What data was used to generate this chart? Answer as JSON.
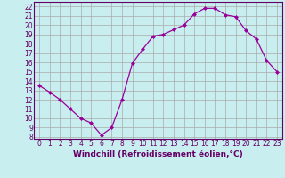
{
  "x": [
    0,
    1,
    2,
    3,
    4,
    5,
    6,
    7,
    8,
    9,
    10,
    11,
    12,
    13,
    14,
    15,
    16,
    17,
    18,
    19,
    20,
    21,
    22,
    23
  ],
  "y": [
    13.5,
    12.8,
    12.0,
    11.0,
    10.0,
    9.5,
    8.2,
    9.0,
    12.0,
    15.9,
    17.4,
    18.8,
    19.0,
    19.5,
    20.0,
    21.2,
    21.8,
    21.8,
    21.1,
    20.9,
    19.4,
    18.5,
    16.2,
    15.0
  ],
  "line_color": "#990099",
  "marker": "D",
  "marker_size": 2.0,
  "bg_color": "#c8eef0",
  "grid_color": "#aaaaaa",
  "xlabel": "Windchill (Refroidissement éolien,°C)",
  "xlim": [
    -0.5,
    23.5
  ],
  "ylim": [
    7.8,
    22.5
  ],
  "yticks": [
    8,
    9,
    10,
    11,
    12,
    13,
    14,
    15,
    16,
    17,
    18,
    19,
    20,
    21,
    22
  ],
  "xticks": [
    0,
    1,
    2,
    3,
    4,
    5,
    6,
    7,
    8,
    9,
    10,
    11,
    12,
    13,
    14,
    15,
    16,
    17,
    18,
    19,
    20,
    21,
    22,
    23
  ],
  "tick_color": "#660066",
  "label_color": "#660066",
  "tick_fontsize": 5.5,
  "xlabel_fontsize": 6.5
}
